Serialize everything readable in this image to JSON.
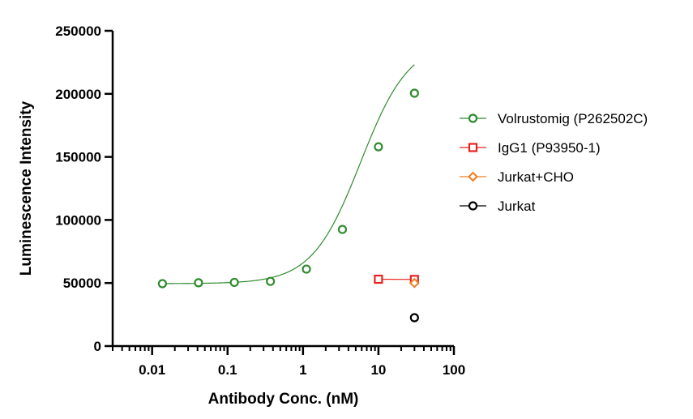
{
  "chart_data": {
    "type": "scatter",
    "title": "",
    "xlabel": "Antibody Conc. (nM)",
    "ylabel": "Luminescence Intensity",
    "x_scale": "log",
    "xlim": [
      0.003,
      100
    ],
    "ylim": [
      0,
      250000
    ],
    "x_ticks": [
      0.01,
      0.1,
      1,
      10,
      100
    ],
    "x_tick_labels": [
      "0.01",
      "0.1",
      "1",
      "10",
      "100"
    ],
    "y_ticks": [
      0,
      50000,
      100000,
      150000,
      200000,
      250000
    ],
    "y_tick_labels": [
      "0",
      "50000",
      "100000",
      "150000",
      "200000",
      "250000"
    ],
    "grid": false,
    "legend_position": "right",
    "series": [
      {
        "name": "Volrustomig (P262502C)",
        "color": "#2e8b2e",
        "marker": "circle",
        "fit": "sigmoid",
        "x": [
          0.0137,
          0.0412,
          0.123,
          0.37,
          1.11,
          3.33,
          10,
          30
        ],
        "y": [
          49500,
          50200,
          50500,
          51300,
          61000,
          92500,
          158000,
          200500
        ]
      },
      {
        "name": "IgG1 (P93950-1)",
        "color": "#e8231f",
        "marker": "square",
        "fit": "line",
        "x": [
          10,
          30
        ],
        "y": [
          53000,
          52800
        ]
      },
      {
        "name": "Jurkat+CHO",
        "color": "#f07d1e",
        "marker": "diamond",
        "fit": "none",
        "x": [
          30
        ],
        "y": [
          50000
        ]
      },
      {
        "name": "Jurkat",
        "color": "#000000",
        "marker": "circle",
        "fit": "none",
        "x": [
          30
        ],
        "y": [
          22500
        ]
      }
    ]
  }
}
